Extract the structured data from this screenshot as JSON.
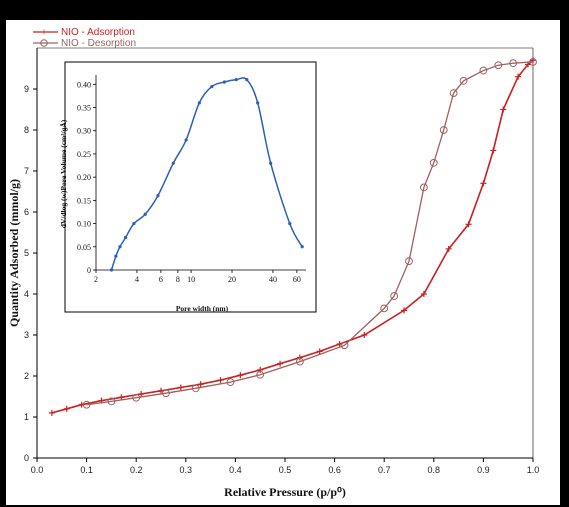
{
  "chart_data": [
    {
      "type": "line",
      "xlabel": "Relative Pressure (p/p⁰)",
      "ylabel": "Quantity Adsorbed (mmol/g)",
      "xlim": [
        0,
        1.0
      ],
      "ylim": [
        0,
        10
      ],
      "xticks": [
        "0.0",
        "0.1",
        "0.2",
        "0.3",
        "0.4",
        "0.5",
        "0.6",
        "0.7",
        "0.8",
        "0.9",
        "1.0"
      ],
      "yticks": [
        "0",
        "1",
        "2",
        "3",
        "4",
        "5",
        "6",
        "7",
        "8",
        "9"
      ],
      "legend_position": "top-left",
      "series": [
        {
          "name": "NIO - Adsorption",
          "color": "#cc1f1f",
          "marker": "plus",
          "x": [
            0.03,
            0.06,
            0.09,
            0.13,
            0.17,
            0.21,
            0.25,
            0.29,
            0.33,
            0.37,
            0.41,
            0.45,
            0.49,
            0.53,
            0.57,
            0.61,
            0.66,
            0.74,
            0.78,
            0.83,
            0.87,
            0.9,
            0.92,
            0.94,
            0.97,
            0.99,
            1.0
          ],
          "y": [
            1.1,
            1.2,
            1.3,
            1.4,
            1.48,
            1.56,
            1.64,
            1.72,
            1.8,
            1.9,
            2.02,
            2.15,
            2.3,
            2.45,
            2.6,
            2.78,
            3.0,
            3.6,
            4.0,
            5.1,
            5.7,
            6.7,
            7.5,
            8.5,
            9.3,
            9.6,
            9.7
          ]
        },
        {
          "name": "NIO - Desorption",
          "color": "#a06060",
          "marker": "circle",
          "x": [
            0.1,
            0.15,
            0.2,
            0.26,
            0.32,
            0.39,
            0.45,
            0.53,
            0.62,
            0.7,
            0.72,
            0.75,
            0.78,
            0.8,
            0.82,
            0.84,
            0.86,
            0.9,
            0.93,
            0.96,
            1.0
          ],
          "y": [
            1.3,
            1.38,
            1.47,
            1.58,
            1.7,
            1.85,
            2.03,
            2.35,
            2.75,
            3.65,
            3.95,
            4.8,
            6.6,
            7.2,
            8.0,
            8.9,
            9.2,
            9.45,
            9.58,
            9.63,
            9.66
          ]
        }
      ]
    },
    {
      "type": "line",
      "xlabel": "Pore width (nm)",
      "ylabel": "dV/dlog (w)Pore Volume (cm³/gÅ)",
      "xscale": "log",
      "xlim": [
        2,
        70
      ],
      "ylim": [
        0,
        0.42
      ],
      "xticks": [
        "2",
        "4",
        "6",
        "8",
        "10",
        "20",
        "40",
        "60"
      ],
      "yticks": [
        "0",
        "0.05",
        "0.10",
        "0.15",
        "0.20",
        "0.25",
        "0.30",
        "0.35",
        "0.40"
      ],
      "series": [
        {
          "color": "#2a5fb8",
          "marker": "small-dot",
          "x": [
            2.6,
            2.8,
            3.0,
            3.3,
            3.8,
            4.6,
            5.7,
            7.4,
            9.2,
            11.5,
            14.2,
            17.6,
            21.5,
            25.7,
            30.9,
            38.5,
            53.2,
            65.6
          ],
          "y": [
            0.0,
            0.03,
            0.05,
            0.07,
            0.1,
            0.12,
            0.16,
            0.23,
            0.28,
            0.36,
            0.395,
            0.405,
            0.41,
            0.41,
            0.36,
            0.23,
            0.1,
            0.05
          ]
        }
      ]
    }
  ]
}
